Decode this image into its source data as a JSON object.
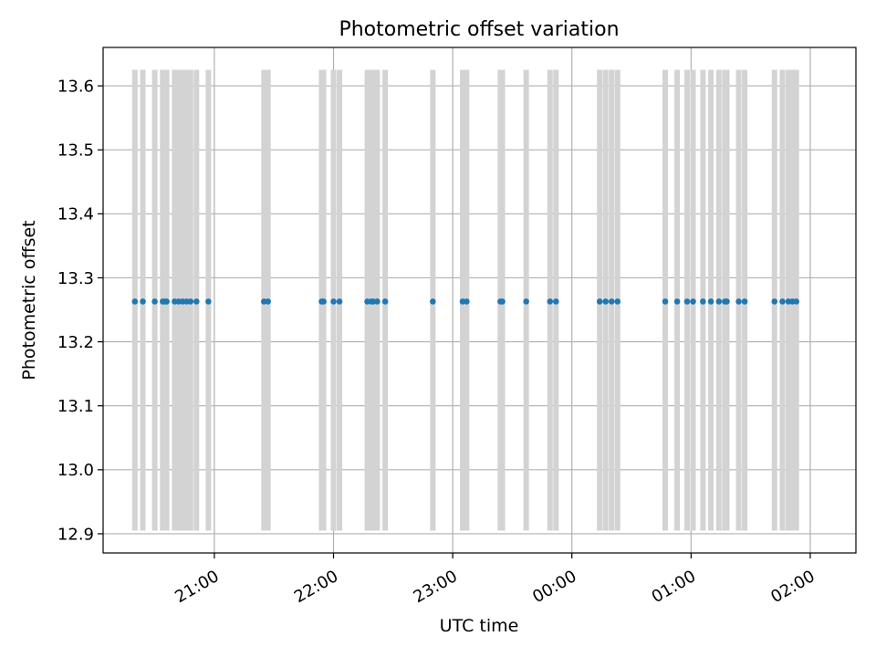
{
  "chart_data": {
    "type": "scatter",
    "title": "Photometric offset variation",
    "xlabel": "UTC time",
    "ylabel": "Photometric offset",
    "x_ticks": [
      "21:00",
      "22:00",
      "23:00",
      "00:00",
      "01:00",
      "02:00"
    ],
    "y_ticks": [
      "12.9",
      "13.0",
      "13.1",
      "13.2",
      "13.3",
      "13.4",
      "13.5",
      "13.6"
    ],
    "ylim": [
      12.87,
      13.66
    ],
    "xlim": [
      "20:04",
      "02:23"
    ],
    "grid": true,
    "error_band": [
      12.905,
      13.625
    ],
    "colors": {
      "points": "#1f77b4",
      "error_bars": "#d3d3d3",
      "grid": "#b0b0b0"
    },
    "x": [
      "20:20",
      "20:24",
      "20:30",
      "20:34",
      "20:35",
      "20:36",
      "20:40",
      "20:42",
      "20:44",
      "20:46",
      "20:48",
      "20:51",
      "20:57",
      "21:25",
      "21:27",
      "21:54",
      "21:55",
      "22:00",
      "22:03",
      "22:17",
      "22:19",
      "22:20",
      "22:22",
      "22:26",
      "22:50",
      "23:05",
      "23:07",
      "23:24",
      "23:25",
      "23:37",
      "23:49",
      "23:52",
      "00:14",
      "00:17",
      "00:20",
      "00:23",
      "00:47",
      "00:53",
      "00:58",
      "01:01",
      "01:06",
      "01:10",
      "01:14",
      "01:17",
      "01:18",
      "01:24",
      "01:27",
      "01:42",
      "01:46",
      "01:49",
      "01:51",
      "01:53"
    ],
    "y": [
      13.263,
      13.263,
      13.263,
      13.263,
      13.263,
      13.263,
      13.263,
      13.263,
      13.263,
      13.263,
      13.263,
      13.263,
      13.263,
      13.263,
      13.263,
      13.263,
      13.263,
      13.263,
      13.263,
      13.263,
      13.263,
      13.263,
      13.263,
      13.263,
      13.263,
      13.263,
      13.263,
      13.263,
      13.263,
      13.263,
      13.263,
      13.263,
      13.263,
      13.263,
      13.263,
      13.263,
      13.263,
      13.263,
      13.263,
      13.263,
      13.263,
      13.263,
      13.263,
      13.263,
      13.263,
      13.263,
      13.263,
      13.263,
      13.263,
      13.263,
      13.263,
      13.263
    ]
  }
}
